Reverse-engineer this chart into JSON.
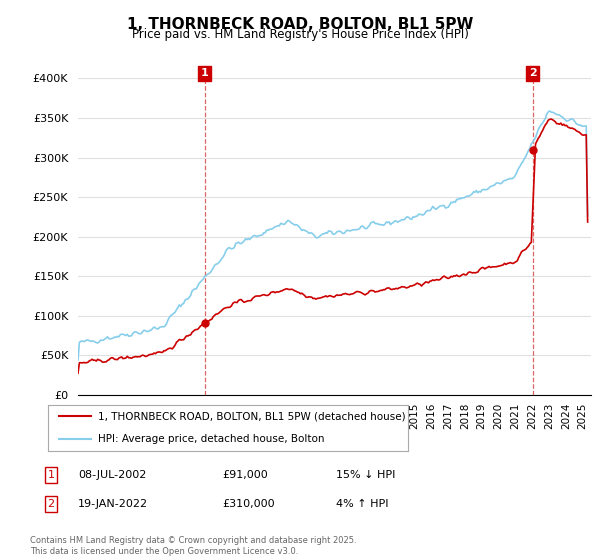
{
  "title": "1, THORNBECK ROAD, BOLTON, BL1 5PW",
  "subtitle": "Price paid vs. HM Land Registry's House Price Index (HPI)",
  "legend_line1": "1, THORNBECK ROAD, BOLTON, BL1 5PW (detached house)",
  "legend_line2": "HPI: Average price, detached house, Bolton",
  "annotation1_date": "08-JUL-2002",
  "annotation1_price": "£91,000",
  "annotation1_hpi": "15% ↓ HPI",
  "annotation2_date": "19-JAN-2022",
  "annotation2_price": "£310,000",
  "annotation2_hpi": "4% ↑ HPI",
  "footer": "Contains HM Land Registry data © Crown copyright and database right 2025.\nThis data is licensed under the Open Government Licence v3.0.",
  "ylim": [
    0,
    400000
  ],
  "hpi_color": "#87CEEB",
  "price_color": "#CC0000",
  "background_color": "#FFFFFF",
  "grid_color": "#E0E0E0",
  "annotation_box_color": "#CC0000",
  "sale1_year": 2002.54,
  "sale1_price": 91000,
  "sale2_year": 2022.04,
  "sale2_price": 310000
}
